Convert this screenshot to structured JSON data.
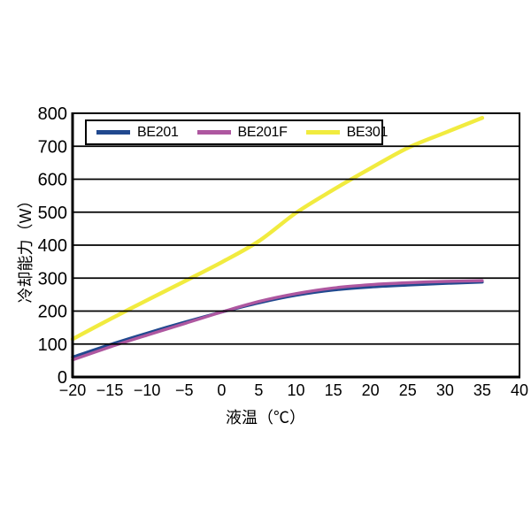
{
  "chart_data": {
    "type": "line",
    "title": "",
    "xlabel": "液温（℃）",
    "ylabel": "冷却能力（W）",
    "x": [
      -20,
      -15,
      -10,
      -5,
      0,
      5,
      10,
      15,
      20,
      25,
      30,
      35
    ],
    "series": [
      {
        "name": "BE201",
        "color": "#21498f",
        "values": [
          60,
          98,
          133,
          166,
          197,
          225,
          248,
          264,
          273,
          279,
          284,
          288
        ]
      },
      {
        "name": "BE201F",
        "color": "#ae57a0",
        "values": [
          52,
          91,
          127,
          162,
          197,
          229,
          253,
          270,
          280,
          286,
          290,
          292
        ]
      },
      {
        "name": "BE301",
        "color": "#f1eb3f",
        "values": [
          115,
          175,
          233,
          290,
          348,
          412,
          498,
          568,
          633,
          695,
          741,
          786
        ]
      }
    ],
    "xlim": [
      -20,
      40
    ],
    "ylim": [
      0,
      800
    ],
    "xticks": [
      -20,
      -15,
      -10,
      -5,
      0,
      5,
      10,
      15,
      20,
      25,
      30,
      35,
      40
    ],
    "xtick_labels": [
      "−20",
      "−15",
      "−10",
      "−5",
      "0",
      "5",
      "10",
      "15",
      "20",
      "25",
      "30",
      "35",
      "40"
    ],
    "yticks": [
      0,
      100,
      200,
      300,
      400,
      500,
      600,
      700,
      800
    ],
    "ytick_labels": [
      "0",
      "100",
      "200",
      "300",
      "400",
      "500",
      "600",
      "700",
      "800"
    ],
    "grid": "horizontal",
    "legend_position": "top-left-inside",
    "axis_color": "#000000",
    "background": "#ffffff"
  }
}
